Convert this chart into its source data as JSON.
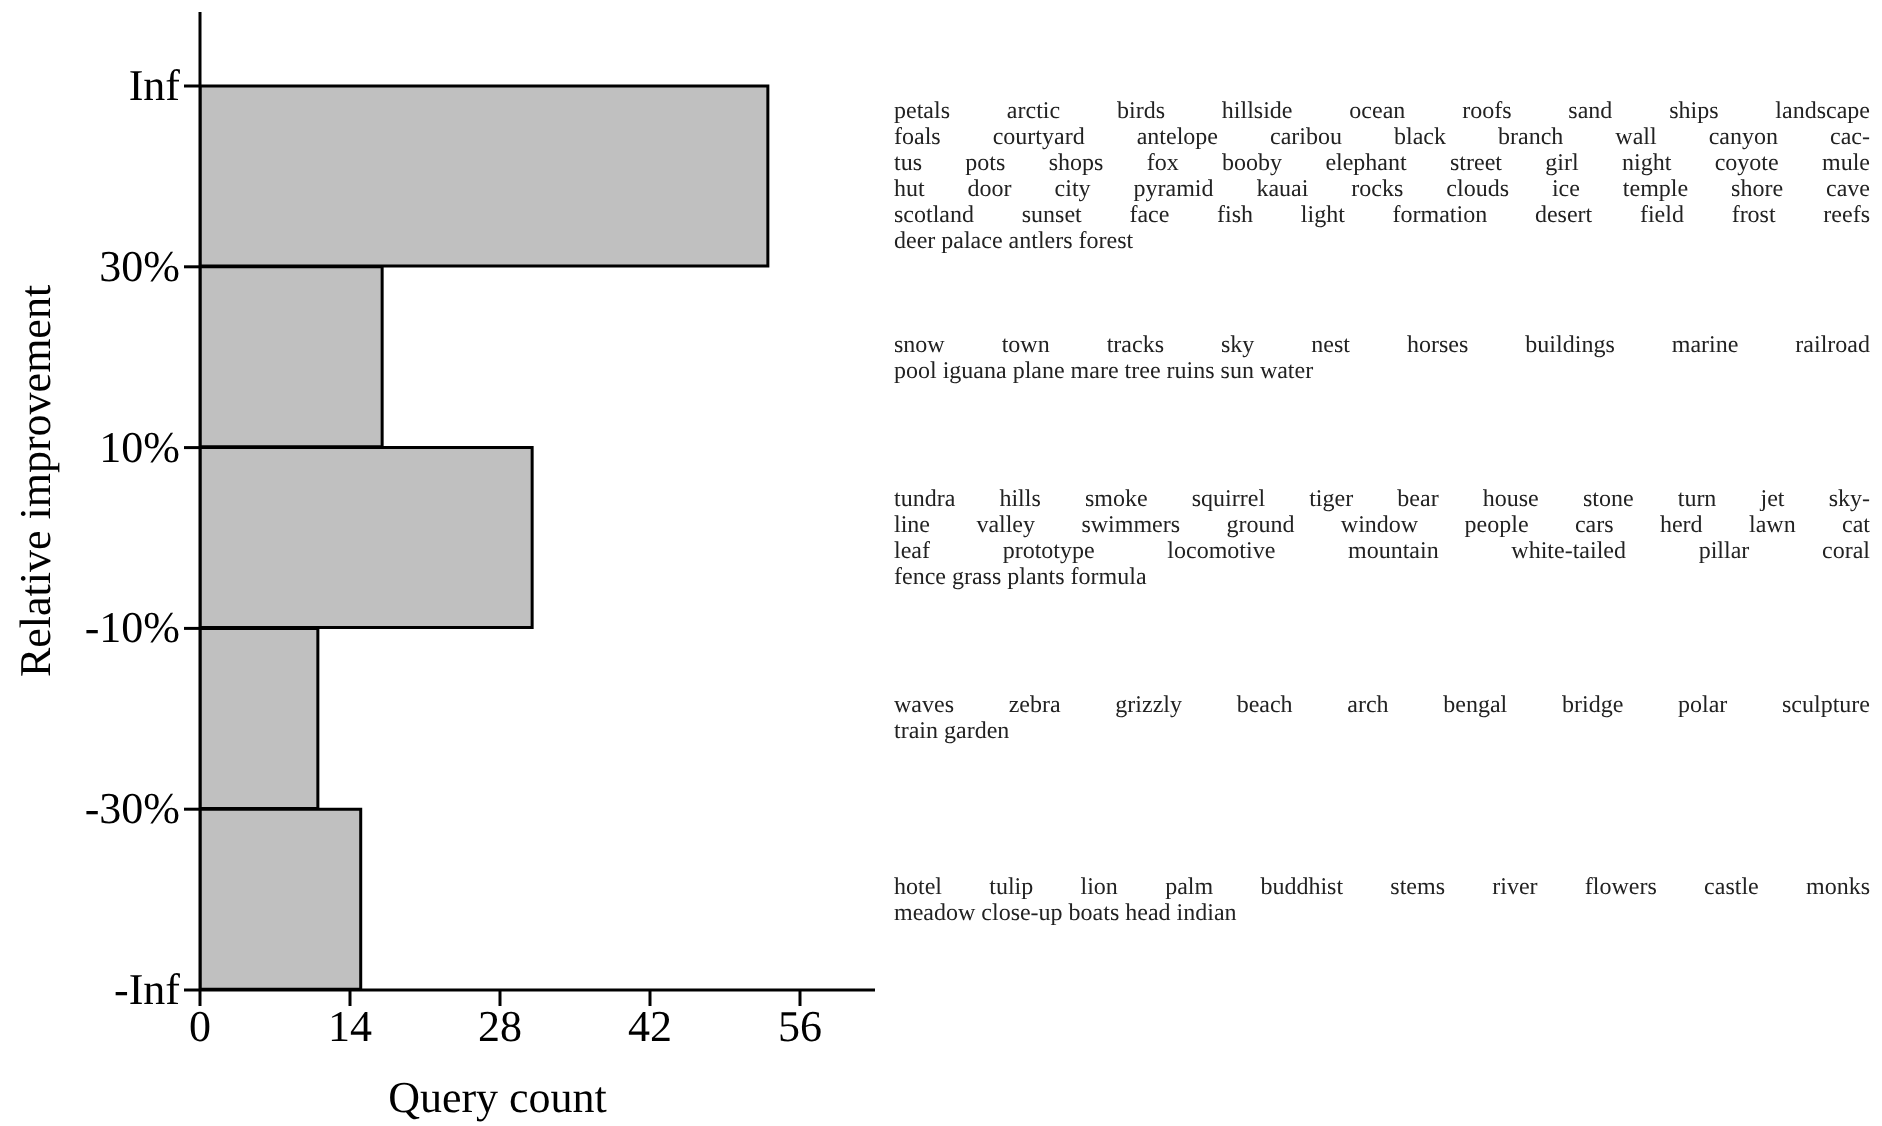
{
  "chart_data": {
    "type": "bar",
    "orientation": "horizontal",
    "categories": [
      null,
      null,
      null,
      null,
      null
    ],
    "values": [
      53,
      17,
      31,
      11,
      15
    ],
    "color": "#c0c0c0",
    "xlabel": "Query count",
    "ylabel": "Relative improvement",
    "xlim": [
      0,
      63
    ],
    "xticks": [
      0,
      14,
      28,
      42,
      56
    ],
    "grid": false,
    "annotations": [
      "Inf",
      "30%",
      "10%",
      "-10%",
      "-30%",
      "-Inf",
      "petals arctic birds hillside ocean roofs sand ships landscape\nfoals courtyard antelope caribou black branch wall canyon cac-\ntus pots shops fox booby elephant street girl night coyote mule\nhut door city pyramid kauai rocks clouds ice temple shore cave\nscotland sunset face fish light formation desert field frost reefs\ndeer palace antlers forest",
      "snow town tracks sky nest horses buildings marine railroad\npool iguana plane mare tree ruins sun water",
      "tundra hills smoke squirrel tiger bear house stone turn jet sky-\nline valley swimmers ground window people cars herd lawn cat\nleaf prototype locomotive mountain white-tailed pillar coral\nfence grass plants formula",
      "waves zebra grizzly beach arch bengal bridge polar sculpture\ntrain garden",
      "hotel tulip lion palm buddhist stems river flowers castle monks\nmeadow close-up boats head indian"
    ]
  }
}
